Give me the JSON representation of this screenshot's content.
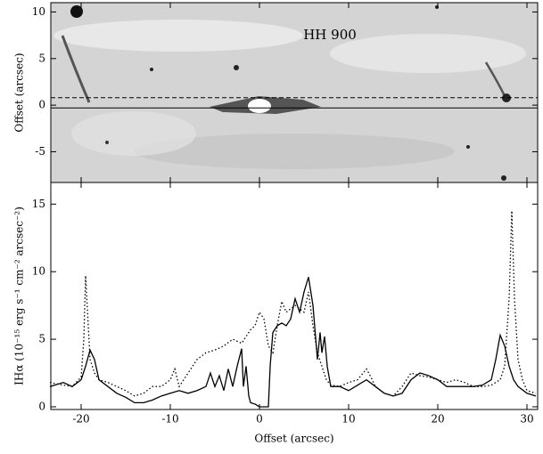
{
  "chart_data": [
    {
      "type": "image",
      "annotation": "HH 900",
      "ylabel": "Offset (arcsec)",
      "xlim": [
        -23.4,
        31.2
      ],
      "xticks": [
        -20,
        -10,
        0,
        10,
        20,
        30
      ],
      "ylim": [
        -8.3,
        11
      ],
      "yticks": [
        -5,
        0,
        5,
        10
      ],
      "hlines": [
        {
          "y": 0.8,
          "style": "dashed"
        },
        {
          "y": -0.3,
          "style": "solid"
        }
      ]
    },
    {
      "type": "line",
      "xlabel": "Offset (arcsec)",
      "ylabel": "IHα (10⁻¹⁵ erg s⁻¹ cm⁻² arcsec⁻²)",
      "xlim": [
        -23.4,
        31.2
      ],
      "xticks": [
        -20,
        -10,
        0,
        10,
        20,
        30
      ],
      "ylim": [
        -0.2,
        16.6
      ],
      "yticks": [
        0,
        5,
        10,
        15
      ],
      "series": [
        {
          "style": "solid",
          "color": "#000000",
          "x": [
            -23.5,
            -22,
            -21,
            -20,
            -19.5,
            -19,
            -18.5,
            -18,
            -17,
            -16,
            -15,
            -14,
            -13,
            -12,
            -11,
            -10,
            -9,
            -8,
            -7,
            -6,
            -5.5,
            -5,
            -4.5,
            -4,
            -3.5,
            -3,
            -2.5,
            -2,
            -1.8,
            -1.5,
            -1.2,
            -1,
            -0.5,
            0,
            0.5,
            1,
            1.2,
            1.5,
            2,
            2.5,
            3,
            3.5,
            4,
            4.5,
            5,
            5.5,
            6,
            6.5,
            6.8,
            7,
            7.3,
            7.6,
            8,
            9,
            10,
            11,
            12,
            13,
            14,
            15,
            16,
            17,
            18,
            19,
            20,
            21,
            22,
            23,
            24,
            25,
            26,
            26.5,
            27,
            27.5,
            28,
            28.5,
            29,
            30,
            31
          ],
          "values": [
            1.5,
            1.8,
            1.5,
            2,
            3,
            4.2,
            3.5,
            2,
            1.5,
            1,
            0.7,
            0.3,
            0.3,
            0.5,
            0.8,
            1,
            1.2,
            1,
            1.2,
            1.5,
            2.5,
            1.5,
            2.3,
            1.2,
            2.8,
            1.5,
            3,
            4.3,
            1.5,
            3,
            0.8,
            0.3,
            0.2,
            0,
            0,
            0,
            3,
            5.5,
            6,
            6.2,
            6,
            6.5,
            8,
            7,
            8.5,
            9.6,
            7.5,
            3.5,
            5.5,
            4,
            5.2,
            3,
            1.5,
            1.5,
            1.2,
            1.6,
            2,
            1.5,
            1,
            0.8,
            1,
            2,
            2.5,
            2.3,
            2,
            1.5,
            1.5,
            1.5,
            1.5,
            1.6,
            2,
            3.5,
            5.3,
            4.5,
            3,
            2,
            1.5,
            1,
            0.8
          ]
        },
        {
          "style": "dotted",
          "color": "#000000",
          "x": [
            -23.5,
            -22,
            -21,
            -20,
            -19.7,
            -19.5,
            -19.2,
            -19,
            -18.5,
            -18,
            -17,
            -16,
            -15,
            -14,
            -13,
            -12,
            -11,
            -10,
            -9.5,
            -9,
            -8,
            -7,
            -6,
            -5,
            -4,
            -3,
            -2,
            -1,
            -0.5,
            0,
            0.5,
            1,
            1.5,
            2,
            2.5,
            3,
            4,
            5,
            5.5,
            6,
            6.5,
            7,
            7.5,
            8,
            9,
            10,
            11,
            12,
            12.5,
            13,
            14,
            15,
            16,
            17,
            18,
            19,
            20,
            21,
            22,
            23,
            24,
            25,
            26,
            27,
            27.5,
            28,
            28.3,
            28.6,
            29,
            29.5,
            30,
            31
          ],
          "values": [
            1.8,
            1.6,
            1.5,
            2.2,
            5,
            9.7,
            6,
            3.5,
            2.5,
            2,
            1.8,
            1.5,
            1.2,
            0.8,
            1,
            1.5,
            1.5,
            2,
            2.8,
            1.5,
            2.5,
            3.5,
            4,
            4.2,
            4.5,
            5,
            4.7,
            5.7,
            6,
            7,
            6.5,
            4.5,
            4,
            6,
            7.8,
            7,
            7.5,
            7,
            8.5,
            6,
            4,
            3,
            2,
            1.6,
            1.5,
            1.8,
            2,
            2.8,
            2.2,
            1.5,
            1,
            0.8,
            1.5,
            2.5,
            2.3,
            2.2,
            2,
            1.8,
            2,
            1.8,
            1.5,
            1.5,
            1.6,
            2,
            3,
            8,
            14.5,
            8,
            3.5,
            2,
            1.2,
            1
          ]
        }
      ]
    }
  ]
}
